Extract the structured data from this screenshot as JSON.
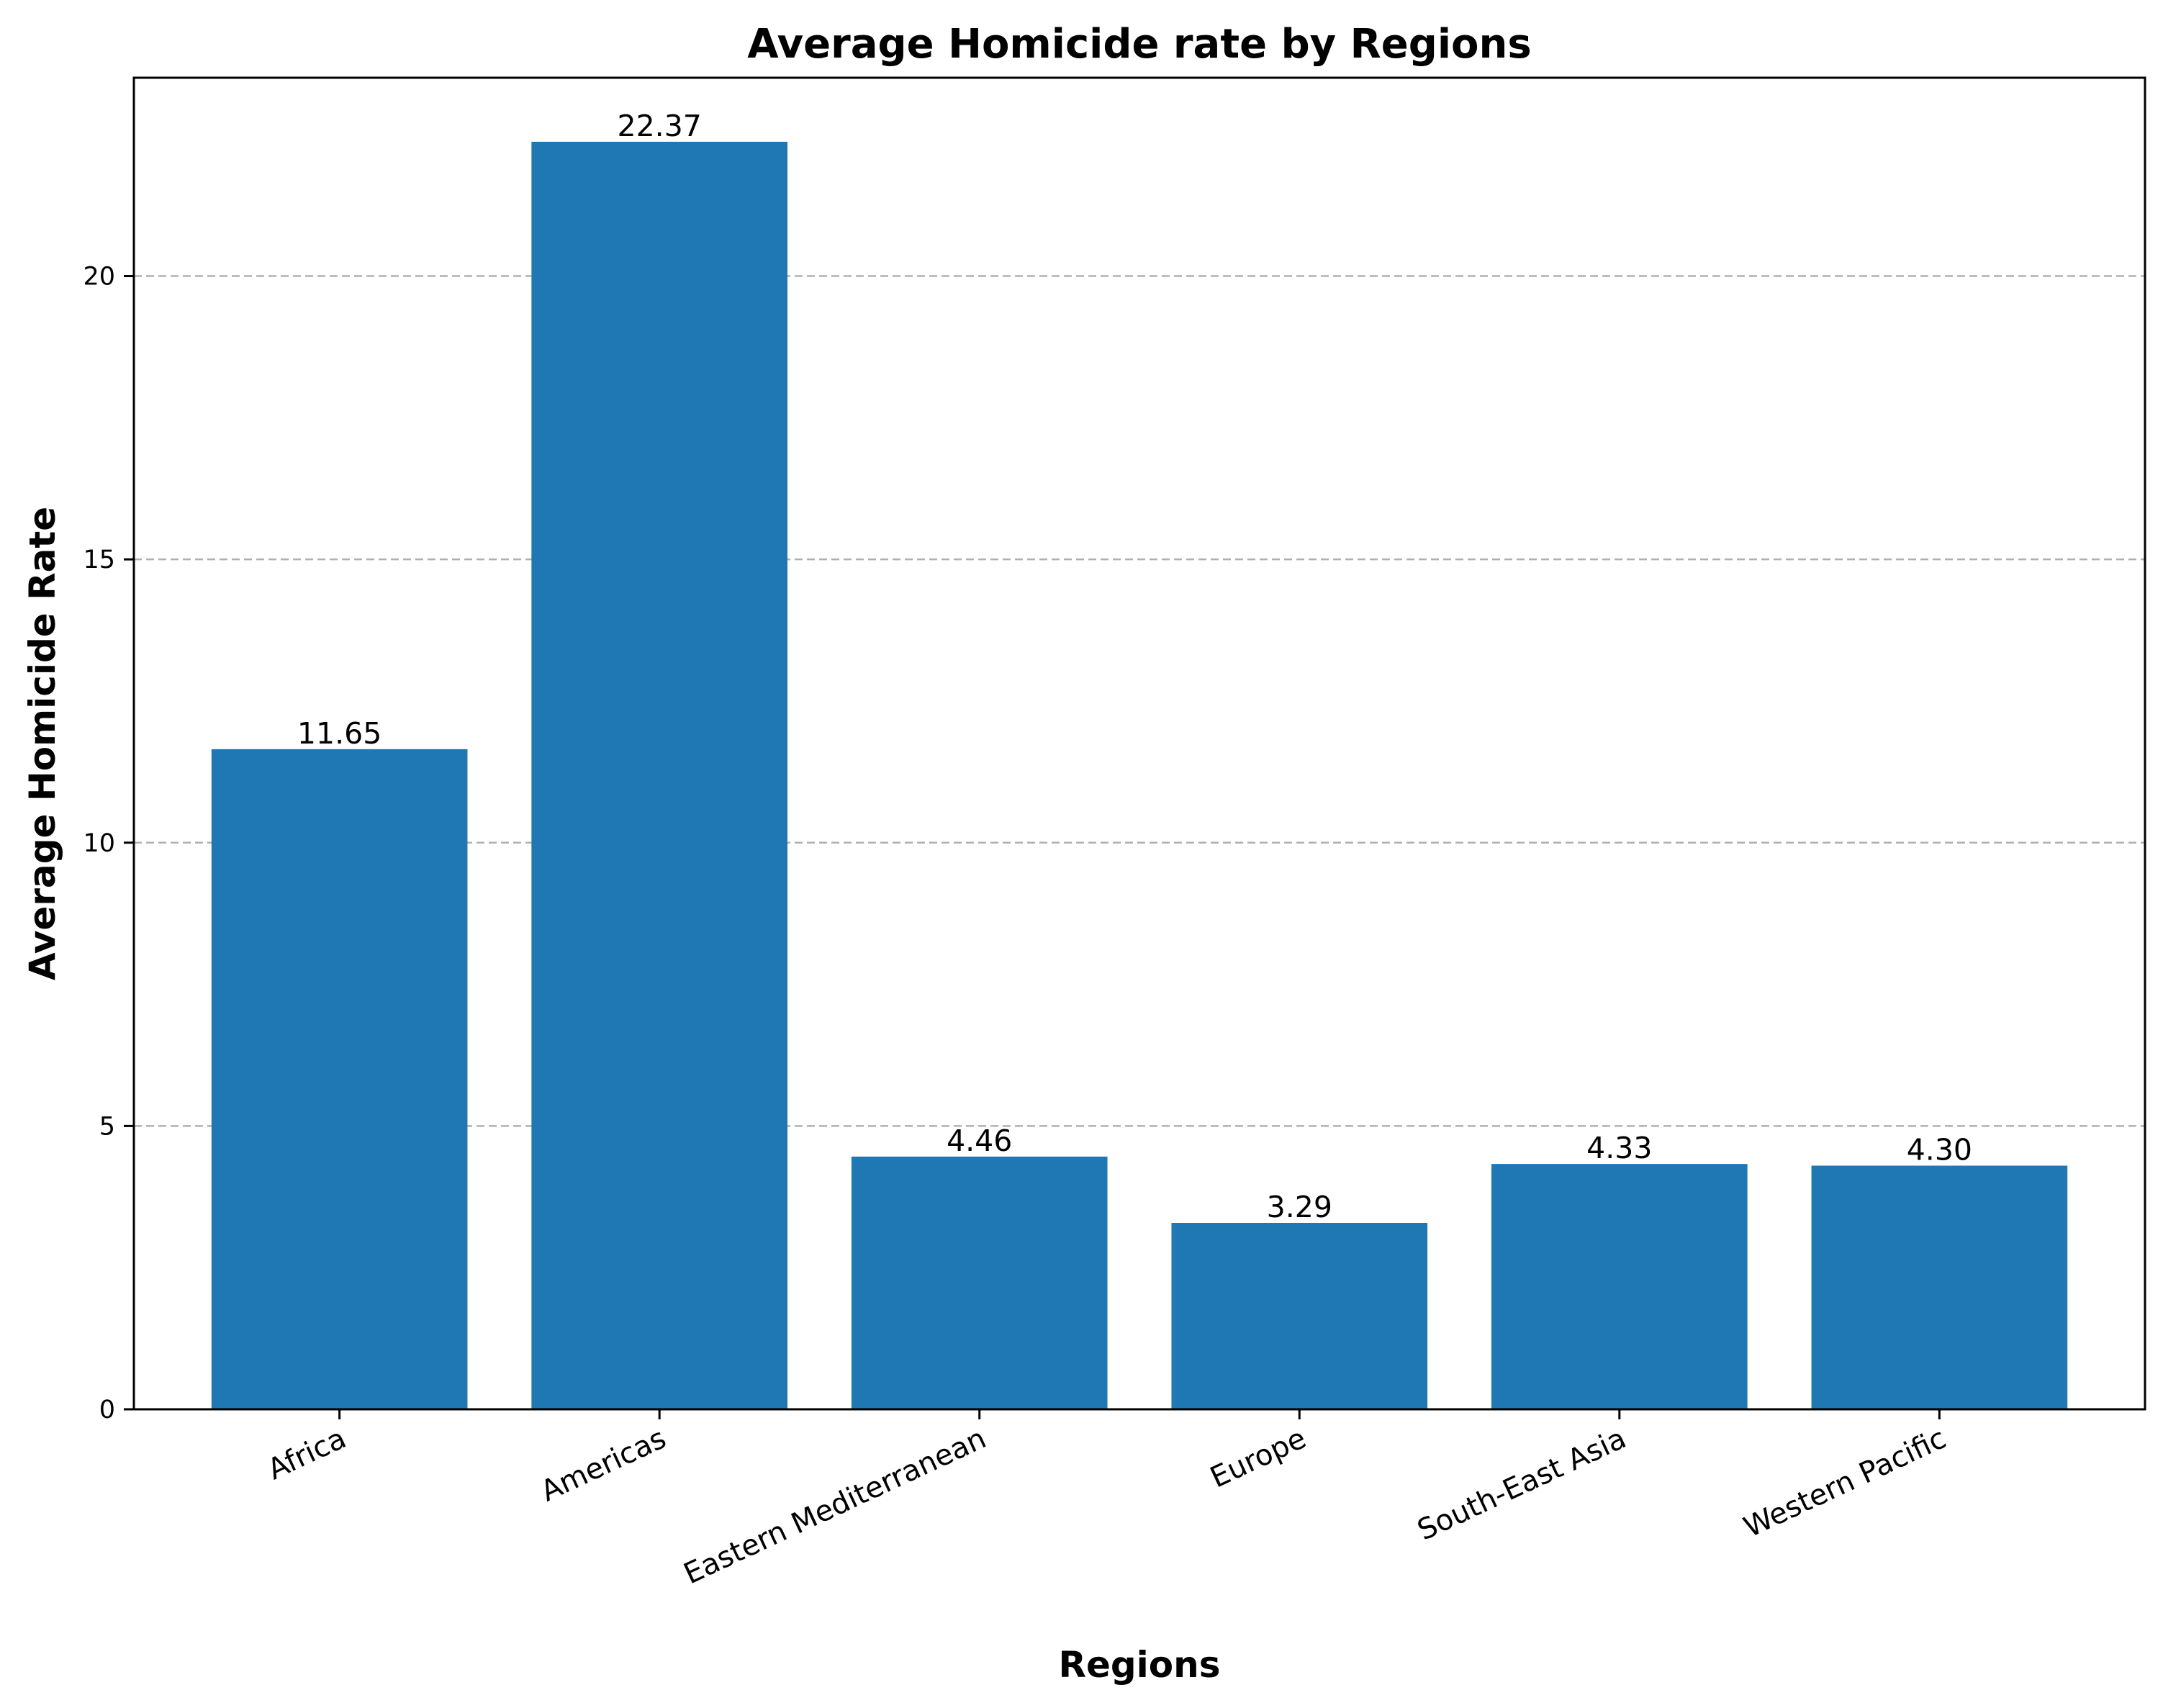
{
  "chart_data": {
    "type": "bar",
    "title": "Average Homicide rate by Regions",
    "xlabel": "Regions",
    "ylabel": "Average Homicide Rate",
    "categories": [
      "Africa",
      "Americas",
      "Eastern Mediterranean",
      "Europe",
      "South-East Asia",
      "Western Pacific"
    ],
    "values": [
      11.65,
      22.37,
      4.46,
      3.29,
      4.33,
      4.3
    ],
    "value_labels": [
      "11.65",
      "22.37",
      "4.46",
      "3.29",
      "4.33",
      "4.30"
    ],
    "yticks": [
      0,
      5,
      10,
      15,
      20
    ],
    "ylim": [
      0,
      23.5
    ],
    "grid": "y-dashed",
    "legend": "none",
    "bar_color": "#1f77b4",
    "grid_color": "#b0b0b0"
  }
}
